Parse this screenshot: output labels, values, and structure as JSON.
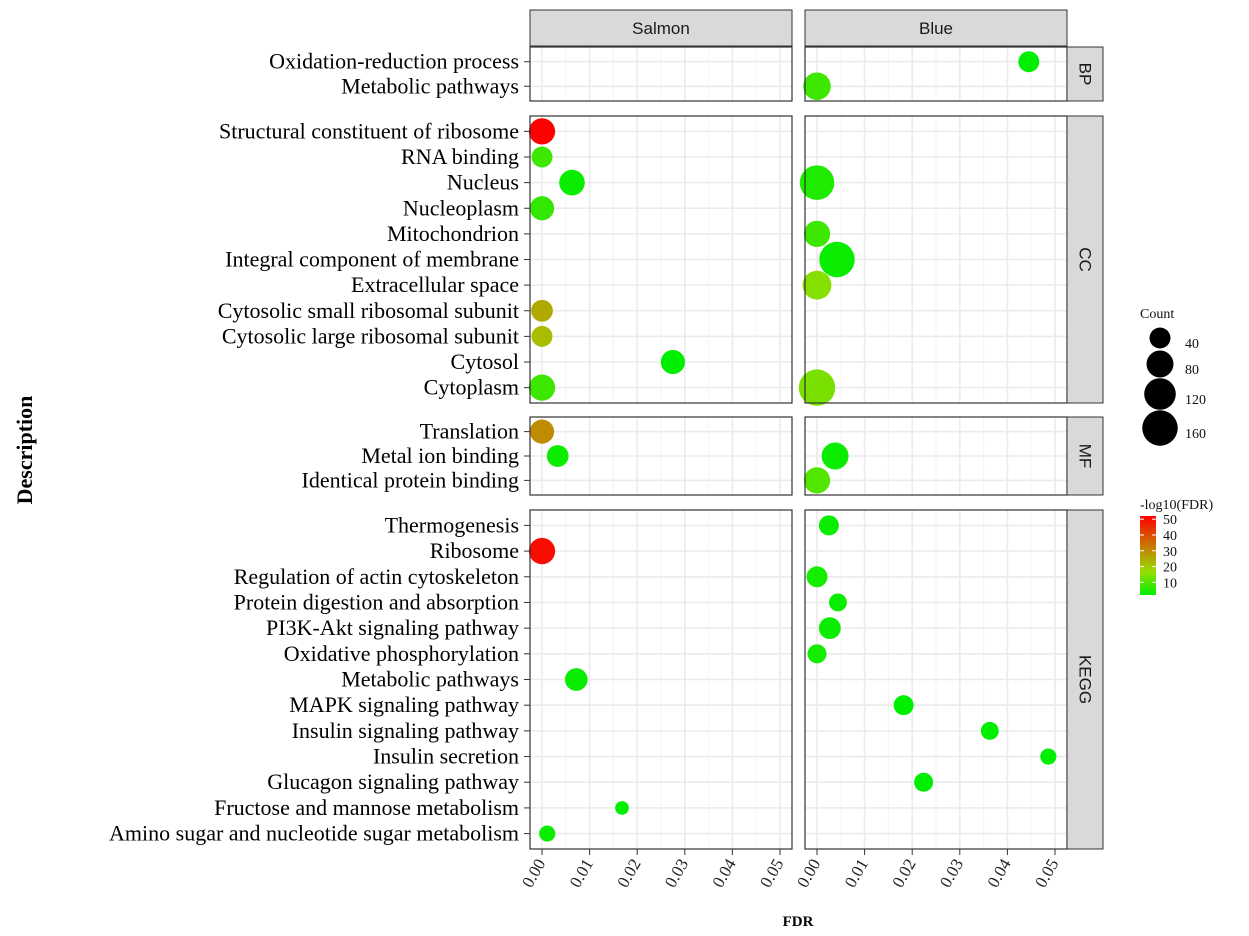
{
  "chart_data": {
    "type": "scatter",
    "xlabel": "FDR",
    "ylabel": "Description",
    "xlim": [
      0,
      0.05
    ],
    "xticks": [
      0.0,
      0.01,
      0.02,
      0.03,
      0.04,
      0.05
    ],
    "xtick_labels": [
      "0.00",
      "0.01",
      "0.02",
      "0.03",
      "0.04",
      "0.05"
    ],
    "grid": true,
    "legend_position": "right",
    "columns": [
      "Salmon",
      "Blue"
    ],
    "rows": [
      {
        "name": "BP",
        "categories": [
          "Oxidation-reduction process",
          "Metabolic pathways"
        ],
        "points": [
          {
            "col": "Blue",
            "term": "Oxidation-reduction process",
            "fdr": 0.0445,
            "count": 40,
            "neglog10fdr": 2
          },
          {
            "col": "Blue",
            "term": "Metabolic pathways",
            "fdr": 0.0,
            "count": 85,
            "neglog10fdr": 8
          }
        ]
      },
      {
        "name": "CC",
        "categories": [
          "Structural constituent of ribosome",
          "RNA binding",
          "Nucleus",
          "Nucleoplasm",
          "Mitochondrion",
          "Integral component of membrane",
          "Extracellular space",
          "Cytosolic small ribosomal subunit",
          "Cytosolic large ribosomal subunit",
          "Cytosol",
          "Cytoplasm"
        ],
        "points": [
          {
            "col": "Salmon",
            "term": "Structural constituent of ribosome",
            "fdr": 0.0,
            "count": 75,
            "neglog10fdr": 52
          },
          {
            "col": "Salmon",
            "term": "RNA binding",
            "fdr": 0.0,
            "count": 40,
            "neglog10fdr": 8
          },
          {
            "col": "Salmon",
            "term": "Nucleus",
            "fdr": 0.0063,
            "count": 70,
            "neglog10fdr": 3
          },
          {
            "col": "Salmon",
            "term": "Nucleoplasm",
            "fdr": 0.0,
            "count": 60,
            "neglog10fdr": 7
          },
          {
            "col": "Salmon",
            "term": "Cytosolic small ribosomal subunit",
            "fdr": 0.0,
            "count": 45,
            "neglog10fdr": 25
          },
          {
            "col": "Salmon",
            "term": "Cytosolic large ribosomal subunit",
            "fdr": 0.0,
            "count": 40,
            "neglog10fdr": 22
          },
          {
            "col": "Salmon",
            "term": "Cytosol",
            "fdr": 0.0275,
            "count": 60,
            "neglog10fdr": 2
          },
          {
            "col": "Salmon",
            "term": "Cytoplasm",
            "fdr": 0.0,
            "count": 75,
            "neglog10fdr": 8
          },
          {
            "col": "Blue",
            "term": "Nucleus",
            "fdr": 0.0,
            "count": 150,
            "neglog10fdr": 5
          },
          {
            "col": "Blue",
            "term": "Mitochondrion",
            "fdr": 0.0,
            "count": 75,
            "neglog10fdr": 8
          },
          {
            "col": "Blue",
            "term": "Integral component of membrane",
            "fdr": 0.0042,
            "count": 160,
            "neglog10fdr": 3
          },
          {
            "col": "Blue",
            "term": "Extracellular space",
            "fdr": 0.0,
            "count": 95,
            "neglog10fdr": 15
          },
          {
            "col": "Blue",
            "term": "Cytoplasm",
            "fdr": 0.0,
            "count": 170,
            "neglog10fdr": 14
          }
        ]
      },
      {
        "name": "MF",
        "categories": [
          "Translation",
          "Metal ion binding",
          "Identical protein binding"
        ],
        "points": [
          {
            "col": "Salmon",
            "term": "Translation",
            "fdr": 0.0,
            "count": 60,
            "neglog10fdr": 30
          },
          {
            "col": "Salmon",
            "term": "Metal ion binding",
            "fdr": 0.0033,
            "count": 45,
            "neglog10fdr": 3
          },
          {
            "col": "Blue",
            "term": "Metal ion binding",
            "fdr": 0.0038,
            "count": 80,
            "neglog10fdr": 3
          },
          {
            "col": "Blue",
            "term": "Identical protein binding",
            "fdr": 0.0,
            "count": 75,
            "neglog10fdr": 10
          }
        ]
      },
      {
        "name": "KEGG",
        "categories": [
          "Thermogenesis",
          "Ribosome",
          "Regulation of actin cytoskeleton",
          "Protein digestion and absorption",
          "PI3K-Akt signaling pathway",
          "Oxidative phosphorylation",
          "Metabolic pathways",
          "MAPK signaling pathway",
          "Insulin signaling pathway",
          "Insulin secretion",
          "Glucagon signaling pathway",
          "Fructose and mannose metabolism",
          "Amino sugar and nucleotide sugar metabolism"
        ],
        "points": [
          {
            "col": "Salmon",
            "term": "Ribosome",
            "fdr": 0.0,
            "count": 75,
            "neglog10fdr": 50
          },
          {
            "col": "Salmon",
            "term": "Metabolic pathways",
            "fdr": 0.0072,
            "count": 50,
            "neglog10fdr": 3
          },
          {
            "col": "Salmon",
            "term": "Fructose and mannose metabolism",
            "fdr": 0.0168,
            "count": 10,
            "neglog10fdr": 2
          },
          {
            "col": "Salmon",
            "term": "Amino sugar and nucleotide sugar metabolism",
            "fdr": 0.0011,
            "count": 18,
            "neglog10fdr": 3
          },
          {
            "col": "Blue",
            "term": "Thermogenesis",
            "fdr": 0.0025,
            "count": 35,
            "neglog10fdr": 3
          },
          {
            "col": "Blue",
            "term": "Regulation of actin cytoskeleton",
            "fdr": 0.0,
            "count": 40,
            "neglog10fdr": 4
          },
          {
            "col": "Blue",
            "term": "Protein digestion and absorption",
            "fdr": 0.0044,
            "count": 25,
            "neglog10fdr": 3
          },
          {
            "col": "Blue",
            "term": "PI3K-Akt signaling pathway",
            "fdr": 0.0027,
            "count": 45,
            "neglog10fdr": 3
          },
          {
            "col": "Blue",
            "term": "Oxidative phosphorylation",
            "fdr": 0.0,
            "count": 30,
            "neglog10fdr": 4
          },
          {
            "col": "Blue",
            "term": "MAPK signaling pathway",
            "fdr": 0.0182,
            "count": 35,
            "neglog10fdr": 2
          },
          {
            "col": "Blue",
            "term": "Insulin signaling pathway",
            "fdr": 0.0363,
            "count": 25,
            "neglog10fdr": 2
          },
          {
            "col": "Blue",
            "term": "Insulin secretion",
            "fdr": 0.0486,
            "count": 18,
            "neglog10fdr": 2
          },
          {
            "col": "Blue",
            "term": "Glucagon signaling pathway",
            "fdr": 0.0224,
            "count": 30,
            "neglog10fdr": 2
          }
        ]
      }
    ],
    "size_legend": {
      "title": "Count",
      "values": [
        40,
        80,
        120,
        160
      ],
      "labels": [
        "40",
        "80",
        "120",
        "160"
      ]
    },
    "color_legend": {
      "title": "-log10(FDR)",
      "min": 2,
      "max": 52,
      "ticks": [
        10,
        20,
        30,
        40,
        50
      ],
      "labels": [
        "10",
        "20",
        "30",
        "40",
        "50"
      ],
      "low_color": "#00ee00",
      "mid_color": "#99dd00",
      "high_color": "#ff0000"
    },
    "colors": {
      "strip_fill": "#d9d9d9",
      "panel_border": "#333333",
      "grid": "#ebebeb"
    }
  }
}
